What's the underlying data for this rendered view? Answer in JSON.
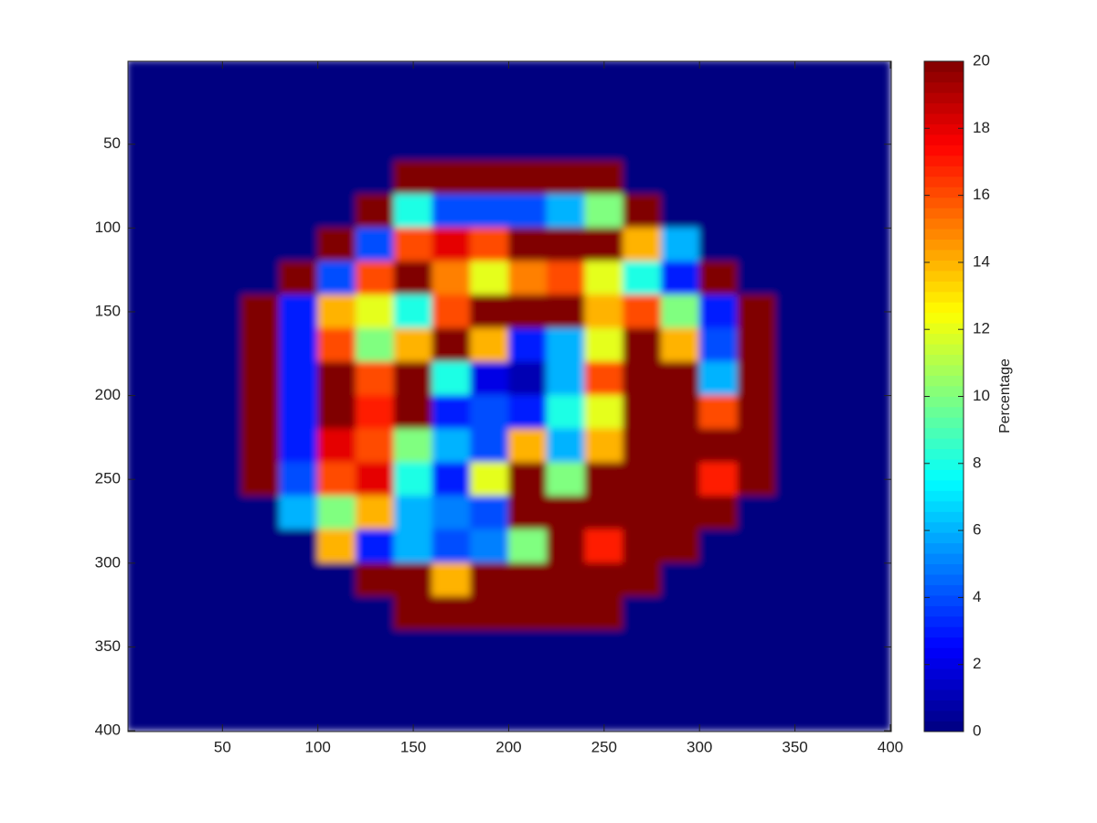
{
  "chart_data": {
    "type": "heatmap",
    "colormap": "jet",
    "x": [
      10,
      30,
      50,
      70,
      90,
      110,
      130,
      150,
      170,
      190,
      210,
      230,
      250,
      270,
      290,
      310,
      330,
      350,
      370,
      390
    ],
    "y": [
      10,
      30,
      50,
      70,
      90,
      110,
      130,
      150,
      170,
      190,
      210,
      230,
      250,
      270,
      290,
      310,
      330,
      350,
      370,
      390
    ],
    "z": [
      [
        0,
        0,
        0,
        0,
        0,
        0,
        0,
        0,
        0,
        0,
        0,
        0,
        0,
        0,
        0,
        0,
        0,
        0,
        0,
        0
      ],
      [
        0,
        0,
        0,
        0,
        0,
        0,
        0,
        0,
        0,
        0,
        0,
        0,
        0,
        0,
        0,
        0,
        0,
        0,
        0,
        0
      ],
      [
        0,
        0,
        0,
        0,
        0,
        0,
        0,
        0,
        0,
        0,
        0,
        0,
        0,
        0,
        0,
        0,
        0,
        0,
        0,
        0
      ],
      [
        0,
        0,
        0,
        0,
        0,
        0,
        0,
        20,
        20,
        20,
        20,
        20,
        20,
        0,
        0,
        0,
        0,
        0,
        0,
        0
      ],
      [
        0,
        0,
        0,
        0,
        0,
        0,
        20,
        8,
        4,
        4,
        4,
        6,
        10,
        20,
        0,
        0,
        0,
        0,
        0,
        0
      ],
      [
        0,
        0,
        0,
        0,
        0,
        20,
        4,
        16,
        18,
        16,
        20,
        20,
        20,
        14,
        6,
        0,
        0,
        0,
        0,
        0
      ],
      [
        0,
        0,
        0,
        0,
        20,
        4,
        16,
        20,
        15,
        12,
        15,
        16,
        12,
        8,
        3,
        20,
        0,
        0,
        0,
        0
      ],
      [
        0,
        0,
        0,
        20,
        3,
        14,
        12,
        8,
        16,
        20,
        20,
        20,
        14,
        16,
        10,
        3,
        20,
        0,
        0,
        0
      ],
      [
        0,
        0,
        0,
        20,
        3,
        16,
        10,
        14,
        20,
        14,
        3,
        6,
        12,
        20,
        14,
        4,
        20,
        0,
        0,
        0
      ],
      [
        0,
        0,
        0,
        20,
        3,
        20,
        16,
        20,
        8,
        2,
        1,
        6,
        16,
        20,
        20,
        6,
        20,
        0,
        0,
        0
      ],
      [
        0,
        0,
        0,
        20,
        3,
        20,
        17,
        20,
        3,
        4,
        3,
        8,
        12,
        20,
        20,
        16,
        20,
        0,
        0,
        0
      ],
      [
        0,
        0,
        0,
        20,
        3,
        18,
        16,
        10,
        6,
        4,
        14,
        6,
        14,
        20,
        20,
        20,
        20,
        0,
        0,
        0
      ],
      [
        0,
        0,
        0,
        20,
        4,
        16,
        18,
        8,
        3,
        12,
        20,
        10,
        20,
        20,
        20,
        17,
        20,
        0,
        0,
        0
      ],
      [
        0,
        0,
        0,
        0,
        6,
        10,
        14,
        6,
        5,
        4,
        20,
        20,
        20,
        20,
        20,
        20,
        0,
        0,
        0,
        0
      ],
      [
        0,
        0,
        0,
        0,
        0,
        14,
        3,
        6,
        4,
        5,
        10,
        20,
        17,
        20,
        20,
        0,
        0,
        0,
        0,
        0
      ],
      [
        0,
        0,
        0,
        0,
        0,
        0,
        20,
        20,
        14,
        20,
        20,
        20,
        20,
        20,
        0,
        0,
        0,
        0,
        0,
        0
      ],
      [
        0,
        0,
        0,
        0,
        0,
        0,
        0,
        20,
        20,
        20,
        20,
        20,
        20,
        0,
        0,
        0,
        0,
        0,
        0,
        0
      ],
      [
        0,
        0,
        0,
        0,
        0,
        0,
        0,
        0,
        0,
        0,
        0,
        0,
        0,
        0,
        0,
        0,
        0,
        0,
        0,
        0
      ],
      [
        0,
        0,
        0,
        0,
        0,
        0,
        0,
        0,
        0,
        0,
        0,
        0,
        0,
        0,
        0,
        0,
        0,
        0,
        0,
        0
      ],
      [
        0,
        0,
        0,
        0,
        0,
        0,
        0,
        0,
        0,
        0,
        0,
        0,
        0,
        0,
        0,
        0,
        0,
        0,
        0,
        0
      ]
    ],
    "xlim": [
      0.5,
      400.5
    ],
    "ylim": [
      0.5,
      400.5
    ],
    "y_reversed": true,
    "xticks": [
      50,
      100,
      150,
      200,
      250,
      300,
      350,
      400
    ],
    "yticks": [
      50,
      100,
      150,
      200,
      250,
      300,
      350,
      400
    ],
    "colorbar": {
      "label": "Percentage",
      "clim": [
        0,
        20
      ],
      "ticks": [
        0,
        2,
        4,
        6,
        8,
        10,
        12,
        14,
        16,
        18,
        20
      ]
    }
  }
}
